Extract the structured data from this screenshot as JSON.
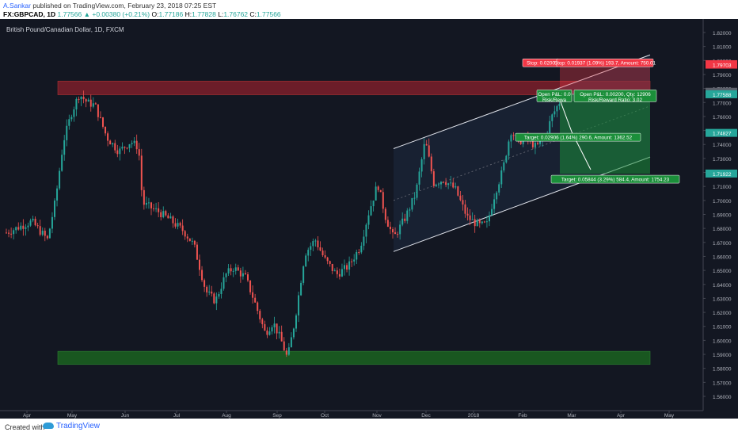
{
  "header": {
    "author": "A.Sankar",
    "published_text": "published on TradingView.com, February 23, 2018 07:25 EST",
    "symbol": "FX:GBPCAD, 1D",
    "change": "1.77566 ▲ +0.00380 (+0.21%)",
    "o_label": "O:",
    "o_value": "1.77186",
    "h_label": "H:",
    "h_value": "1.77828",
    "l_label": "L:",
    "l_value": "1.76762",
    "c_label": "C:",
    "c_value": "1.77566"
  },
  "legend": {
    "title": "British Pound/Canadian Dollar, 1D, FXCM"
  },
  "price_axis": {
    "ticks": [
      "1.82000",
      "1.81000",
      "1.80000",
      "1.79000",
      "1.78000",
      "1.77000",
      "1.76000",
      "1.75000",
      "1.74000",
      "1.73000",
      "1.72000",
      "1.71000",
      "1.70000",
      "1.69000",
      "1.68000",
      "1.67000",
      "1.66000",
      "1.65000",
      "1.64000",
      "1.63000",
      "1.62000",
      "1.61000",
      "1.60000",
      "1.59000",
      "1.58000",
      "1.57000",
      "1.56000"
    ],
    "tick_values": [
      1.82,
      1.81,
      1.8,
      1.79,
      1.78,
      1.77,
      1.76,
      1.75,
      1.74,
      1.73,
      1.72,
      1.71,
      1.7,
      1.69,
      1.68,
      1.67,
      1.66,
      1.65,
      1.64,
      1.63,
      1.62,
      1.61,
      1.6,
      1.59,
      1.58,
      1.57,
      1.56
    ],
    "badges": [
      {
        "text": "1.79737",
        "value": 1.79737,
        "color": "#f23645"
      },
      {
        "text": "1.79703",
        "value": 1.79703,
        "color": "#f23645"
      },
      {
        "text": "1.77766",
        "value": 1.77766,
        "color": "#5d606b"
      },
      {
        "text": "1.77733",
        "value": 1.77733,
        "color": "#5d606b"
      },
      {
        "text": "1.77588",
        "value": 1.77588,
        "color": "#26a69a"
      },
      {
        "text": "1.74827",
        "value": 1.74827,
        "color": "#26a69a"
      },
      {
        "text": "1.71922",
        "value": 1.71922,
        "color": "#26a69a"
      }
    ]
  },
  "time_axis": {
    "labels": [
      "Apr",
      "May",
      "Jun",
      "Jul",
      "Aug",
      "Sep",
      "Oct",
      "Nov",
      "Dec",
      "2018",
      "Feb",
      "Mar",
      "Apr",
      "May"
    ]
  },
  "annotations": {
    "stop_a": "Stop: 0.0200",
    "stop_b": "Stop: 0.01937 (1.09%) 193.7, Amount: 750.01",
    "open_a_line1": "Open P&L: 0.0",
    "open_a_line2": "Risk/Rewa",
    "open_b_line1": "Open P&L: 0.00200, Qty: 12906",
    "open_b_line2": "Risk/Reward Ratio: 3.02",
    "target_a": "Target: 0.02906 (1.64%) 290.6, Amount: 1362.52",
    "target_b": "Target: 0.05844 (3.29%) 584.4, Amount: 1754.23"
  },
  "colors": {
    "background": "#131722",
    "up_candle": "#26a69a",
    "down_candle": "#ef5350",
    "resistance_zone": "#7d1f2a",
    "support_zone": "#1b5e20",
    "channel": "#e0e3eb"
  },
  "footer": {
    "created_with": "Created with",
    "brand": "TradingView"
  }
}
